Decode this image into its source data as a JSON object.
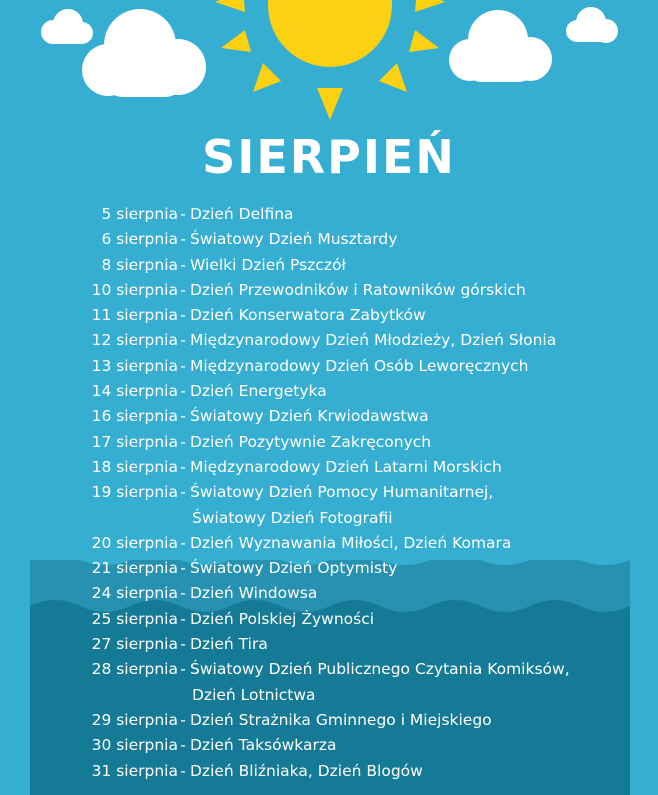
{
  "title": "SIERPIEŃ",
  "separator": "-",
  "colors": {
    "sky": "#35aed2",
    "sea_light": "#2691b1",
    "sea_dark": "#157a95",
    "sun": "#fbd112",
    "cloud": "#ffffff",
    "text": "#ffffff"
  },
  "days": [
    {
      "date": "5 sierpnia",
      "name": "Dzień Delfina"
    },
    {
      "date": "6 sierpnia",
      "name": "Światowy Dzień Musztardy"
    },
    {
      "date": "8 sierpnia",
      "name": "Wielki Dzień Pszczół"
    },
    {
      "date": "10 sierpnia",
      "name": "Dzień Przewodników i Ratowników górskich"
    },
    {
      "date": "11 sierpnia",
      "name": "Dzień Konserwatora Zabytków"
    },
    {
      "date": "12 sierpnia",
      "name": "Międzynarodowy Dzień Młodzieży, Dzień Słonia"
    },
    {
      "date": "13 sierpnia",
      "name": "Międzynarodowy Dzień Osób Leworęcznych"
    },
    {
      "date": "14 sierpnia",
      "name": "Dzień Energetyka"
    },
    {
      "date": "16 sierpnia",
      "name": "Światowy Dzień Krwiodawstwa"
    },
    {
      "date": "17 sierpnia",
      "name": "Dzień Pozytywnie Zakręconych"
    },
    {
      "date": "18 sierpnia",
      "name": "Międzynarodowy Dzień Latarni Morskich"
    },
    {
      "date": "19 sierpnia",
      "name": "Światowy Dzień Pomocy Humanitarnej,",
      "continuation": "Światowy Dzień Fotografii"
    },
    {
      "date": "20 sierpnia",
      "name": "Dzień Wyznawania Miłości, Dzień Komara"
    },
    {
      "date": "21 sierpnia",
      "name": "Światowy Dzień Optymisty"
    },
    {
      "date": "24 sierpnia",
      "name": "Dzień Windowsa"
    },
    {
      "date": "25 sierpnia",
      "name": "Dzień Polskiej Żywności"
    },
    {
      "date": "27 sierpnia",
      "name": "Dzień Tira"
    },
    {
      "date": "28 sierpnia",
      "name": "Światowy Dzień Publicznego Czytania Komiksów,",
      "continuation": "Dzień Lotnictwa"
    },
    {
      "date": "29 sierpnia",
      "name": "Dzień Strażnika Gminnego i Miejskiego"
    },
    {
      "date": "30 sierpnia",
      "name": "Dzień Taksówkarza"
    },
    {
      "date": "31 sierpnia",
      "name": "Dzień Bliźniaka, Dzień Blogów"
    }
  ]
}
